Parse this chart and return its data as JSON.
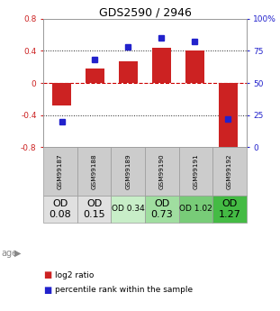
{
  "title": "GDS2590 / 2946",
  "samples": [
    "GSM99187",
    "GSM99188",
    "GSM99189",
    "GSM99190",
    "GSM99191",
    "GSM99192"
  ],
  "log2_ratios": [
    -0.28,
    0.18,
    0.27,
    0.44,
    0.4,
    -0.85
  ],
  "percentile_ranks": [
    20,
    68,
    78,
    85,
    82,
    22
  ],
  "bar_color": "#cc2222",
  "dot_color": "#2222cc",
  "ylim_left": [
    -0.8,
    0.8
  ],
  "ylim_right": [
    0,
    100
  ],
  "yticks_left": [
    -0.8,
    -0.4,
    0.0,
    0.4,
    0.8
  ],
  "ytick_labels_left": [
    "-0.8",
    "-0.4",
    "0",
    "0.4",
    "0.8"
  ],
  "yticks_right": [
    0,
    25,
    50,
    75,
    100
  ],
  "ytick_labels_right": [
    "0",
    "25",
    "50",
    "75",
    "100%"
  ],
  "hlines_dotted": [
    -0.4,
    0.4
  ],
  "hline_zero": 0.0,
  "age_labels": [
    "OD\n0.08",
    "OD\n0.15",
    "OD 0.34",
    "OD\n0.73",
    "OD 1.02",
    "OD\n1.27"
  ],
  "age_bg_colors": [
    "#e0e0e0",
    "#e0e0e0",
    "#c8eec8",
    "#a0dea0",
    "#78cc78",
    "#44bb44"
  ],
  "age_font_sizes": [
    8,
    8,
    6.5,
    8,
    6.5,
    8
  ],
  "gsm_bg_color": "#cccccc",
  "gsm_border_color": "#999999",
  "label_log2": "log2 ratio",
  "label_pct": "percentile rank within the sample",
  "zero_line_color": "#cc0000",
  "dotted_line_color": "#222222",
  "bg_color": "#ffffff",
  "plot_bg_color": "#ffffff",
  "border_color": "#999999",
  "title_fontsize": 9
}
